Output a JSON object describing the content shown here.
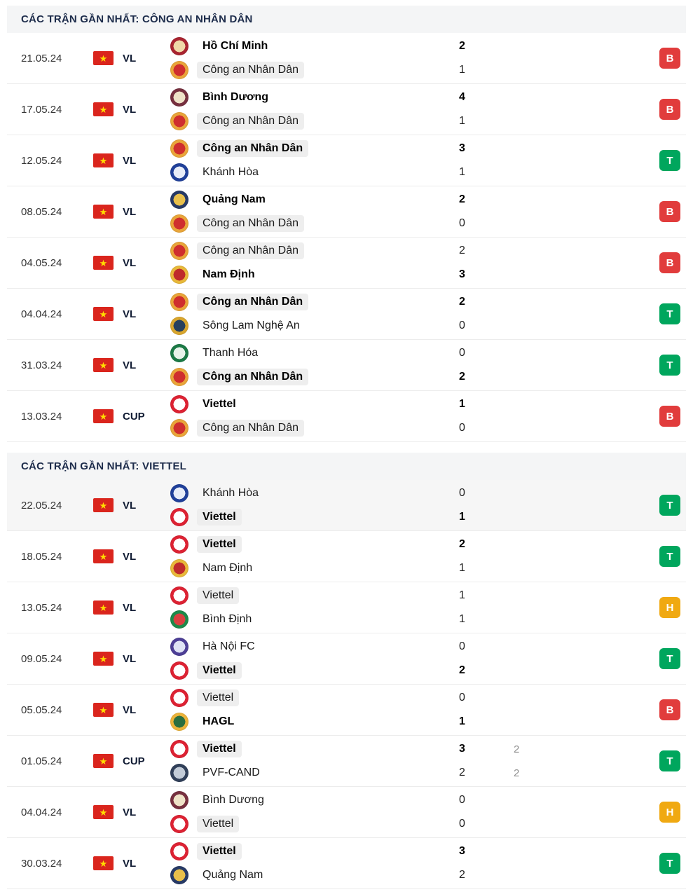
{
  "result_colors": {
    "B": "#e13c3c",
    "T": "#00a65d",
    "H": "#f0a912"
  },
  "highlight_pill_color": "#eeeeee",
  "flag_colors": {
    "background": "#da251d",
    "star": "#ffde00"
  },
  "logos": {
    "Hồ Chí Minh": [
      "#a92430",
      "#f0d9a8"
    ],
    "Công an Nhân Dân": [
      "#e9a53a",
      "#cf2e2e"
    ],
    "Bình Dương": [
      "#77303f",
      "#efe3c8"
    ],
    "Khánh Hòa": [
      "#20409a",
      "#e8edf8"
    ],
    "Quảng Nam": [
      "#273a66",
      "#e9c04b"
    ],
    "Nam Định": [
      "#e8b93a",
      "#bf2b2b"
    ],
    "Sông Lam Nghệ An": [
      "#d9a62e",
      "#27405e"
    ],
    "Thanh Hóa": [
      "#1c7a46",
      "#e8f3ea"
    ],
    "Viettel": [
      "#dd2233",
      "#ffffff"
    ],
    "Bình Định": [
      "#1d8a4a",
      "#d94040"
    ],
    "Hà Nội FC": [
      "#4d3f96",
      "#dfe3f5"
    ],
    "HAGL": [
      "#ecb33a",
      "#2a6e3f"
    ],
    "PVF-CAND": [
      "#31405a",
      "#c3ccd8"
    ]
  },
  "sections": [
    {
      "title": "CÁC TRẬN GẦN NHẤT: CÔNG AN NHÂN DÂN",
      "matches": [
        {
          "date": "21.05.24",
          "competition": "VL",
          "result": "B",
          "shaded": false,
          "home": {
            "name": "Hồ Chí Minh",
            "score": "2",
            "extra": "",
            "bold": true,
            "highlighted": false
          },
          "away": {
            "name": "Công an Nhân Dân",
            "score": "1",
            "extra": "",
            "bold": false,
            "highlighted": true
          }
        },
        {
          "date": "17.05.24",
          "competition": "VL",
          "result": "B",
          "shaded": false,
          "home": {
            "name": "Bình Dương",
            "score": "4",
            "extra": "",
            "bold": true,
            "highlighted": false
          },
          "away": {
            "name": "Công an Nhân Dân",
            "score": "1",
            "extra": "",
            "bold": false,
            "highlighted": true
          }
        },
        {
          "date": "12.05.24",
          "competition": "VL",
          "result": "T",
          "shaded": false,
          "home": {
            "name": "Công an Nhân Dân",
            "score": "3",
            "extra": "",
            "bold": true,
            "highlighted": true
          },
          "away": {
            "name": "Khánh Hòa",
            "score": "1",
            "extra": "",
            "bold": false,
            "highlighted": false
          }
        },
        {
          "date": "08.05.24",
          "competition": "VL",
          "result": "B",
          "shaded": false,
          "home": {
            "name": "Quảng Nam",
            "score": "2",
            "extra": "",
            "bold": true,
            "highlighted": false
          },
          "away": {
            "name": "Công an Nhân Dân",
            "score": "0",
            "extra": "",
            "bold": false,
            "highlighted": true
          }
        },
        {
          "date": "04.05.24",
          "competition": "VL",
          "result": "B",
          "shaded": false,
          "home": {
            "name": "Công an Nhân Dân",
            "score": "2",
            "extra": "",
            "bold": false,
            "highlighted": true
          },
          "away": {
            "name": "Nam Định",
            "score": "3",
            "extra": "",
            "bold": true,
            "highlighted": false
          }
        },
        {
          "date": "04.04.24",
          "competition": "VL",
          "result": "T",
          "shaded": false,
          "home": {
            "name": "Công an Nhân Dân",
            "score": "2",
            "extra": "",
            "bold": true,
            "highlighted": true
          },
          "away": {
            "name": "Sông Lam Nghệ An",
            "score": "0",
            "extra": "",
            "bold": false,
            "highlighted": false
          }
        },
        {
          "date": "31.03.24",
          "competition": "VL",
          "result": "T",
          "shaded": false,
          "home": {
            "name": "Thanh Hóa",
            "score": "0",
            "extra": "",
            "bold": false,
            "highlighted": false
          },
          "away": {
            "name": "Công an Nhân Dân",
            "score": "2",
            "extra": "",
            "bold": true,
            "highlighted": true
          }
        },
        {
          "date": "13.03.24",
          "competition": "CUP",
          "result": "B",
          "shaded": false,
          "home": {
            "name": "Viettel",
            "score": "1",
            "extra": "",
            "bold": true,
            "highlighted": false
          },
          "away": {
            "name": "Công an Nhân Dân",
            "score": "0",
            "extra": "",
            "bold": false,
            "highlighted": true
          }
        }
      ]
    },
    {
      "title": "CÁC TRẬN GẦN NHẤT: VIETTEL",
      "matches": [
        {
          "date": "22.05.24",
          "competition": "VL",
          "result": "T",
          "shaded": true,
          "home": {
            "name": "Khánh Hòa",
            "score": "0",
            "extra": "",
            "bold": false,
            "highlighted": false
          },
          "away": {
            "name": "Viettel",
            "score": "1",
            "extra": "",
            "bold": true,
            "highlighted": true
          }
        },
        {
          "date": "18.05.24",
          "competition": "VL",
          "result": "T",
          "shaded": false,
          "home": {
            "name": "Viettel",
            "score": "2",
            "extra": "",
            "bold": true,
            "highlighted": true
          },
          "away": {
            "name": "Nam Định",
            "score": "1",
            "extra": "",
            "bold": false,
            "highlighted": false
          }
        },
        {
          "date": "13.05.24",
          "competition": "VL",
          "result": "H",
          "shaded": false,
          "home": {
            "name": "Viettel",
            "score": "1",
            "extra": "",
            "bold": false,
            "highlighted": true
          },
          "away": {
            "name": "Bình Định",
            "score": "1",
            "extra": "",
            "bold": false,
            "highlighted": false
          }
        },
        {
          "date": "09.05.24",
          "competition": "VL",
          "result": "T",
          "shaded": false,
          "home": {
            "name": "Hà Nội FC",
            "score": "0",
            "extra": "",
            "bold": false,
            "highlighted": false
          },
          "away": {
            "name": "Viettel",
            "score": "2",
            "extra": "",
            "bold": true,
            "highlighted": true
          }
        },
        {
          "date": "05.05.24",
          "competition": "VL",
          "result": "B",
          "shaded": false,
          "home": {
            "name": "Viettel",
            "score": "0",
            "extra": "",
            "bold": false,
            "highlighted": true
          },
          "away": {
            "name": "HAGL",
            "score": "1",
            "extra": "",
            "bold": true,
            "highlighted": false
          }
        },
        {
          "date": "01.05.24",
          "competition": "CUP",
          "result": "T",
          "shaded": false,
          "home": {
            "name": "Viettel",
            "score": "3",
            "extra": "2",
            "bold": true,
            "highlighted": true
          },
          "away": {
            "name": "PVF-CAND",
            "score": "2",
            "extra": "2",
            "bold": false,
            "highlighted": false
          }
        },
        {
          "date": "04.04.24",
          "competition": "VL",
          "result": "H",
          "shaded": false,
          "home": {
            "name": "Bình Dương",
            "score": "0",
            "extra": "",
            "bold": false,
            "highlighted": false
          },
          "away": {
            "name": "Viettel",
            "score": "0",
            "extra": "",
            "bold": false,
            "highlighted": true
          }
        },
        {
          "date": "30.03.24",
          "competition": "VL",
          "result": "T",
          "shaded": false,
          "home": {
            "name": "Viettel",
            "score": "3",
            "extra": "",
            "bold": true,
            "highlighted": true
          },
          "away": {
            "name": "Quảng Nam",
            "score": "2",
            "extra": "",
            "bold": false,
            "highlighted": false
          }
        }
      ]
    }
  ]
}
